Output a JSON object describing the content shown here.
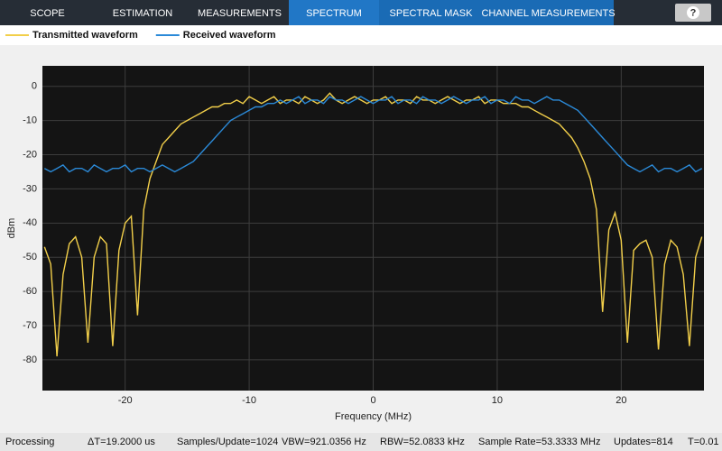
{
  "toolbar": {
    "tabs": [
      "SCOPE",
      "ESTIMATION",
      "MEASUREMENTS",
      "SPECTRUM",
      "SPECTRAL MASK",
      "CHANNEL MEASUREMENTS"
    ],
    "help": "?"
  },
  "chart_data": {
    "type": "line",
    "xlabel": "Frequency (MHz)",
    "ylabel": "dBm",
    "x": [
      -26.5,
      -26,
      -25.5,
      -25,
      -24.5,
      -24,
      -23.5,
      -23,
      -22.5,
      -22,
      -21.5,
      -21,
      -20.5,
      -20,
      -19.5,
      -19,
      -18.5,
      -18,
      -17.5,
      -17,
      -16.5,
      -16,
      -15.5,
      -15,
      -14.5,
      -14,
      -13.5,
      -13,
      -12.5,
      -12,
      -11.5,
      -11,
      -10.5,
      -10,
      -9.5,
      -9,
      -8.5,
      -8,
      -7.5,
      -7,
      -6.5,
      -6,
      -5.5,
      -5,
      -4.5,
      -4,
      -3.5,
      -3,
      -2.5,
      -2,
      -1.5,
      -1,
      -0.5,
      0,
      0.5,
      1,
      1.5,
      2,
      2.5,
      3,
      3.5,
      4,
      4.5,
      5,
      5.5,
      6,
      6.5,
      7,
      7.5,
      8,
      8.5,
      9,
      9.5,
      10,
      10.5,
      11,
      11.5,
      12,
      12.5,
      13,
      13.5,
      14,
      14.5,
      15,
      15.5,
      16,
      16.5,
      17,
      17.5,
      18,
      18.5,
      19,
      19.5,
      20,
      20.5,
      21,
      21.5,
      22,
      22.5,
      23,
      23.5,
      24,
      24.5,
      25,
      25.5,
      26,
      26.5
    ],
    "series": [
      {
        "name": "Transmitted waveform",
        "color": "#f2cf4a",
        "values": [
          -47,
          -52,
          -79,
          -55,
          -46,
          -44,
          -50,
          -75,
          -50,
          -44,
          -46,
          -76,
          -48,
          -40,
          -38,
          -67,
          -36,
          -27,
          -22,
          -17,
          -15,
          -13,
          -11,
          -10,
          -9,
          -8,
          -7,
          -6,
          -6,
          -5,
          -5,
          -4,
          -5,
          -3,
          -4,
          -5,
          -4,
          -3,
          -5,
          -4,
          -4,
          -5,
          -3,
          -4,
          -5,
          -4,
          -2,
          -4,
          -5,
          -4,
          -3,
          -4,
          -5,
          -4,
          -4,
          -3,
          -5,
          -4,
          -4,
          -5,
          -3,
          -4,
          -4,
          -5,
          -4,
          -3,
          -4,
          -5,
          -4,
          -4,
          -3,
          -5,
          -4,
          -4,
          -5,
          -5,
          -5,
          -6,
          -6,
          -7,
          -8,
          -9,
          -10,
          -11,
          -13,
          -15,
          -18,
          -22,
          -27,
          -36,
          -66,
          -42,
          -37,
          -45,
          -75,
          -48,
          -46,
          -45,
          -50,
          -77,
          -52,
          -45,
          -47,
          -55,
          -76,
          -50,
          -44
        ]
      },
      {
        "name": "Received waveform",
        "color": "#2b8ad8",
        "values": [
          -24,
          -25,
          -24,
          -23,
          -25,
          -24,
          -24,
          -25,
          -23,
          -24,
          -25,
          -24,
          -24,
          -23,
          -25,
          -24,
          -24,
          -25,
          -24,
          -23,
          -24,
          -25,
          -24,
          -23,
          -22,
          -20,
          -18,
          -16,
          -14,
          -12,
          -10,
          -9,
          -8,
          -7,
          -6,
          -6,
          -5,
          -5,
          -4,
          -5,
          -4,
          -3,
          -5,
          -4,
          -4,
          -5,
          -3,
          -4,
          -4,
          -5,
          -4,
          -3,
          -4,
          -5,
          -4,
          -4,
          -3,
          -5,
          -4,
          -4,
          -5,
          -3,
          -4,
          -4,
          -5,
          -4,
          -3,
          -4,
          -5,
          -4,
          -4,
          -3,
          -5,
          -4,
          -4,
          -5,
          -3,
          -4,
          -4,
          -5,
          -4,
          -3,
          -4,
          -4,
          -5,
          -6,
          -7,
          -9,
          -11,
          -13,
          -15,
          -17,
          -19,
          -21,
          -23,
          -24,
          -25,
          -24,
          -23,
          -25,
          -24,
          -24,
          -25,
          -24,
          -23,
          -25,
          -24
        ]
      }
    ],
    "xlim": [
      -26.67,
      26.67
    ],
    "ylim": [
      -89,
      6
    ],
    "xticks": [
      -20,
      -10,
      0,
      10,
      20
    ],
    "yticks": [
      0,
      -10,
      -20,
      -30,
      -40,
      -50,
      -60,
      -70,
      -80
    ],
    "grid": true,
    "legend": "top-left"
  },
  "status_bar": {
    "items": [
      "Processing",
      "ΔT=19.2000 us",
      "Samples/Update=1024",
      "VBW=921.0356 Hz",
      "RBW=52.0833 kHz",
      "Sample Rate=53.3333 MHz",
      "Updates=814",
      "T=0.01"
    ]
  }
}
